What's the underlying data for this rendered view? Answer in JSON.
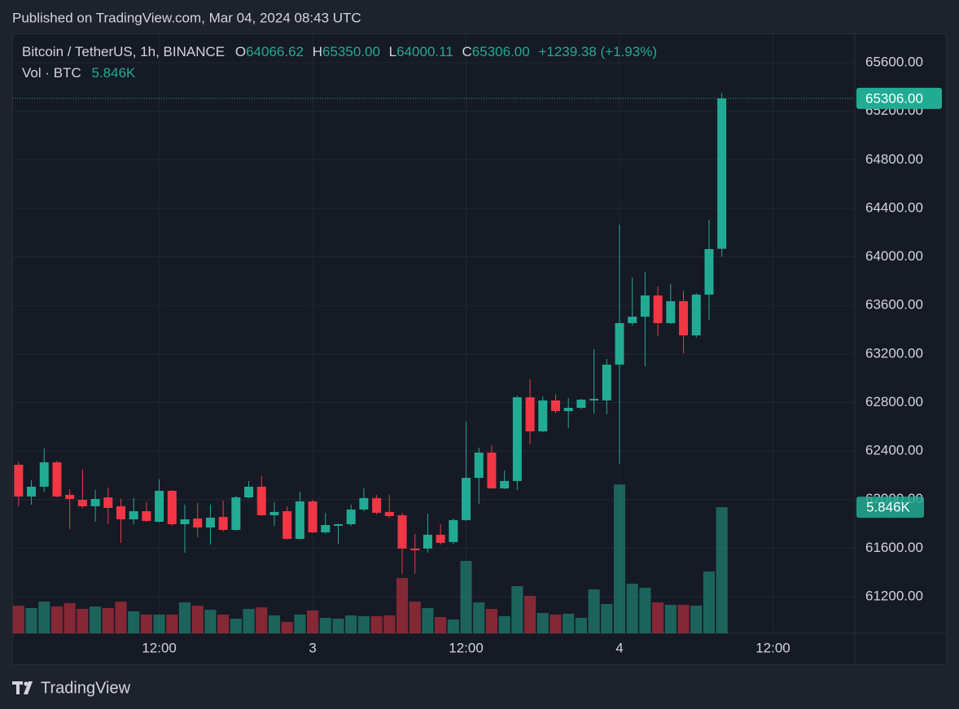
{
  "header": {
    "published": "Published on TradingView.com, Mar 04, 2024 08:43 UTC"
  },
  "chart_data": {
    "type": "candlestick",
    "legend": {
      "symbol": "Bitcoin / TetherUS, 1h, BINANCE",
      "items": [
        {
          "key": "O",
          "value": "64066.62"
        },
        {
          "key": "H",
          "value": "65350.00"
        },
        {
          "key": "L",
          "value": "64000.11"
        },
        {
          "key": "C",
          "value": "65306.00"
        }
      ],
      "change": "+1239.38 (+1.93%)",
      "volume_title": "Vol · BTC",
      "volume_value": "5.846K"
    },
    "up_color": "#22ab94",
    "down_color": "#f23645",
    "grid": true,
    "open": [
      62287,
      62025,
      62106,
      62307,
      62039,
      61998,
      61945,
      62018,
      61945,
      61837,
      61904,
      61817,
      62072,
      61797,
      61844,
      61770,
      61857,
      61750,
      62018,
      62106,
      61871,
      61904,
      61676,
      61985,
      61730,
      61784,
      61797,
      61918,
      62012,
      61898,
      61871,
      61596,
      61596,
      61710,
      61650,
      61831,
      62179,
      62387,
      62092,
      62153,
      62843,
      62562,
      62817,
      62729,
      62756,
      62817,
      62817,
      63112,
      63454,
      63507,
      63682,
      63454,
      63635,
      63353,
      63689,
      64066.62
    ],
    "high": [
      62314,
      62159,
      62421,
      62320,
      62086,
      62253,
      62079,
      62099,
      62005,
      62012,
      61978,
      62166,
      62079,
      61958,
      61972,
      61958,
      61992,
      62032,
      62153,
      62193,
      61978,
      61945,
      62065,
      61998,
      61891,
      61804,
      61958,
      62092,
      62039,
      62039,
      61891,
      61717,
      61884,
      61797,
      61844,
      62642,
      62428,
      62448,
      62240,
      62857,
      62991,
      62850,
      62870,
      62837,
      62830,
      63239,
      63159,
      64265,
      63829,
      63876,
      63756,
      63776,
      63722,
      63702,
      64306,
      65350
    ],
    "low": [
      61945,
      61958,
      62065,
      62020,
      61757,
      61931,
      61817,
      61797,
      61643,
      61797,
      61817,
      61811,
      61784,
      61562,
      61690,
      61629,
      61737,
      61743,
      62012,
      61864,
      61784,
      61670,
      61670,
      61723,
      61717,
      61636,
      61784,
      61904,
      61878,
      61850,
      61388,
      61388,
      61562,
      61629,
      61636,
      61824,
      61965,
      62090,
      62086,
      62079,
      62454,
      62555,
      62709,
      62589,
      62743,
      62709,
      62703,
      62293,
      63434,
      63098,
      63346,
      63447,
      63206,
      63333,
      63481,
      64000.11
    ],
    "close": [
      62025,
      62106,
      62307,
      62025,
      62005,
      61945,
      62005,
      61931,
      61837,
      61904,
      61824,
      62072,
      61797,
      61837,
      61770,
      61851,
      61750,
      62018,
      62106,
      61871,
      61898,
      61676,
      61985,
      61730,
      61790,
      61797,
      61918,
      62012,
      61891,
      61864,
      61596,
      61582,
      61710,
      61643,
      61831,
      62179,
      62387,
      62092,
      62153,
      62843,
      62562,
      62817,
      62729,
      62756,
      62823,
      62830,
      63112,
      63454,
      63507,
      63682,
      63454,
      63635,
      63353,
      63689,
      64064,
      65306
    ],
    "volume": [
      1282,
      1169,
      1470,
      1244,
      1395,
      1131,
      1244,
      1169,
      1470,
      1018,
      867,
      867,
      867,
      1433,
      1282,
      1093,
      867,
      679,
      1131,
      1206,
      829,
      528,
      867,
      1056,
      716,
      679,
      829,
      792,
      792,
      829,
      2564,
      1470,
      1169,
      754,
      641,
      3355,
      1433,
      1131,
      792,
      2187,
      1734,
      943,
      867,
      905,
      716,
      2036,
      1357,
      6899,
      2300,
      2111,
      1433,
      1320,
      1320,
      1282,
      2865,
      5846
    ],
    "ylim": [
      60898,
      65835
    ],
    "yticks": [
      {
        "value": 61200,
        "label": "61200.00"
      },
      {
        "value": 61600,
        "label": "61600.00"
      },
      {
        "value": 62000,
        "label": "62000.00"
      },
      {
        "value": 62400,
        "label": "62400.00"
      },
      {
        "value": 62800,
        "label": "62800.00"
      },
      {
        "value": 63200,
        "label": "63200.00"
      },
      {
        "value": 63600,
        "label": "63600.00"
      },
      {
        "value": 64000,
        "label": "64000.00"
      },
      {
        "value": 64400,
        "label": "64400.00"
      },
      {
        "value": 64800,
        "label": "64800.00"
      },
      {
        "value": 65200,
        "label": "65200.00"
      },
      {
        "value": 65600,
        "label": "65600.00"
      }
    ],
    "xlim": [
      -0.5,
      65.4
    ],
    "xticks": [
      {
        "value": 11,
        "label": "12:00"
      },
      {
        "value": 23,
        "label": "3"
      },
      {
        "value": 35,
        "label": "12:00"
      },
      {
        "value": 47,
        "label": "4"
      },
      {
        "value": 59,
        "label": "12:00"
      }
    ],
    "volume_ylim": [
      0,
      8000
    ]
  },
  "footer": {
    "brand": "TradingView"
  }
}
